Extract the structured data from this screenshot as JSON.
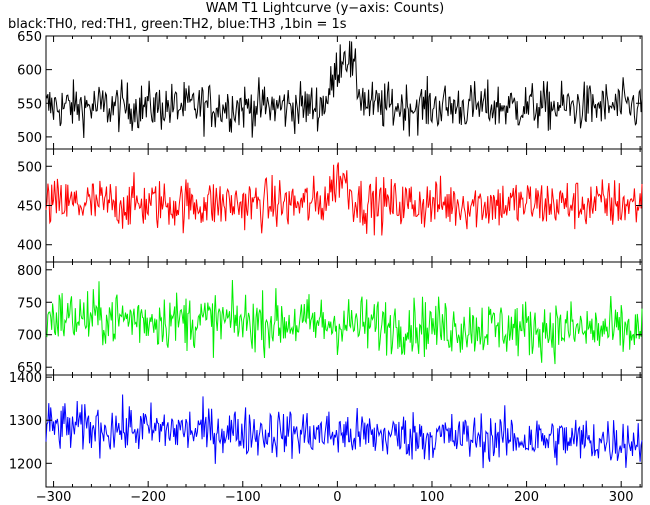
{
  "title": "WAM T1 Lightcurve (y−axis: Counts)",
  "subtitle": "black:TH0, red:TH1, green:TH2, blue:TH3 ,1bin = 1s",
  "chart_data": {
    "type": "line",
    "x_ticks": [
      -300,
      -200,
      -100,
      0,
      100,
      200,
      300
    ],
    "xlim": [
      -308,
      322
    ],
    "panels": [
      {
        "name": "TH0",
        "color": "#000000",
        "ylim": [
          482,
          650
        ],
        "y_ticks": [
          500,
          550,
          600,
          650
        ],
        "baseline": 545,
        "noise": 22,
        "peak": {
          "center": 8,
          "width": 14,
          "height": 80
        }
      },
      {
        "name": "TH1",
        "color": "#ff0000",
        "ylim": [
          378,
          522
        ],
        "y_ticks": [
          400,
          450,
          500
        ],
        "baseline": 452,
        "noise": 20,
        "peak": {
          "center": 3,
          "width": 12,
          "height": 35
        }
      },
      {
        "name": "TH2",
        "color": "#00ee00",
        "ylim": [
          638,
          812
        ],
        "y_ticks": [
          650,
          700,
          750,
          800
        ],
        "baseline": 728,
        "baseline_end": 705,
        "noise": 27,
        "peak": {
          "center": 0,
          "width": 10,
          "height": 0
        }
      },
      {
        "name": "TH3",
        "color": "#0000ff",
        "ylim": [
          1145,
          1405
        ],
        "y_ticks": [
          1200,
          1300,
          1400
        ],
        "baseline": 1285,
        "baseline_end": 1250,
        "noise": 35,
        "peak": {
          "center": 0,
          "width": 10,
          "height": 0
        }
      }
    ]
  }
}
